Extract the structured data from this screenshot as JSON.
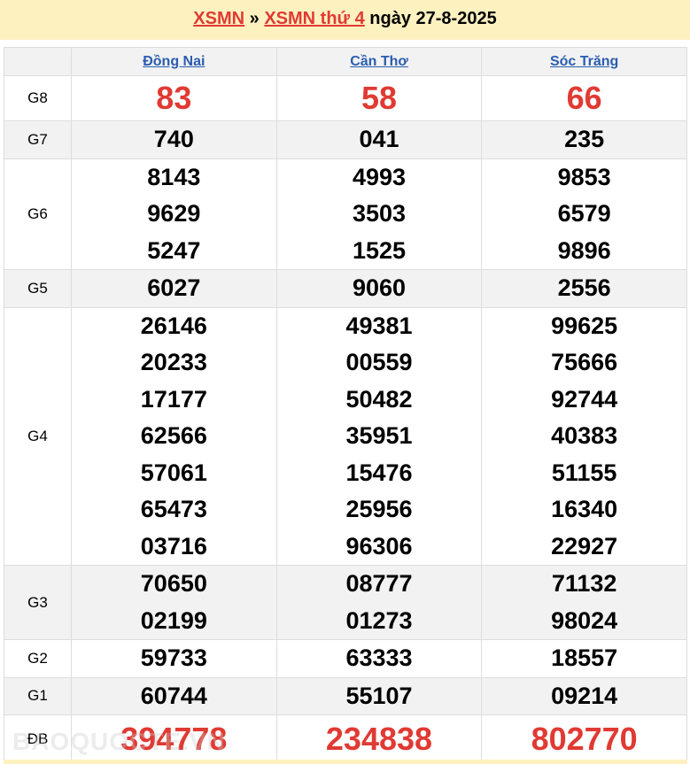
{
  "header": {
    "link1": "XSMN",
    "sep": "»",
    "link2": "XSMN thứ 4",
    "date_text": "ngày 27-8-2025"
  },
  "provinces": [
    "Đồng Nai",
    "Cần Thơ",
    "Sóc Trăng"
  ],
  "prizes": [
    {
      "label": "G8",
      "values": [
        [
          "83"
        ],
        [
          "58"
        ],
        [
          "66"
        ]
      ]
    },
    {
      "label": "G7",
      "values": [
        [
          "740"
        ],
        [
          "041"
        ],
        [
          "235"
        ]
      ]
    },
    {
      "label": "G6",
      "values": [
        [
          "8143",
          "9629",
          "5247"
        ],
        [
          "4993",
          "3503",
          "1525"
        ],
        [
          "9853",
          "6579",
          "9896"
        ]
      ]
    },
    {
      "label": "G5",
      "values": [
        [
          "6027"
        ],
        [
          "9060"
        ],
        [
          "2556"
        ]
      ]
    },
    {
      "label": "G4",
      "values": [
        [
          "26146",
          "20233",
          "17177",
          "62566",
          "57061",
          "65473",
          "03716"
        ],
        [
          "49381",
          "00559",
          "50482",
          "35951",
          "15476",
          "25956",
          "96306"
        ],
        [
          "99625",
          "75666",
          "92744",
          "40383",
          "51155",
          "16340",
          "22927"
        ]
      ]
    },
    {
      "label": "G3",
      "values": [
        [
          "70650",
          "02199"
        ],
        [
          "08777",
          "01273"
        ],
        [
          "71132",
          "98024"
        ]
      ]
    },
    {
      "label": "G2",
      "values": [
        [
          "59733"
        ],
        [
          "63333"
        ],
        [
          "18557"
        ]
      ]
    },
    {
      "label": "G1",
      "values": [
        [
          "60744"
        ],
        [
          "55107"
        ],
        [
          "09214"
        ]
      ]
    },
    {
      "label": "ĐB",
      "values": [
        [
          "394778"
        ],
        [
          "234838"
        ],
        [
          "802770"
        ]
      ]
    }
  ],
  "watermark": "BAOQUOCTE.VN",
  "colors": {
    "accent_red": "#e03a33",
    "link_blue": "#2a5db0",
    "header_bg": "#fdf1c0"
  }
}
